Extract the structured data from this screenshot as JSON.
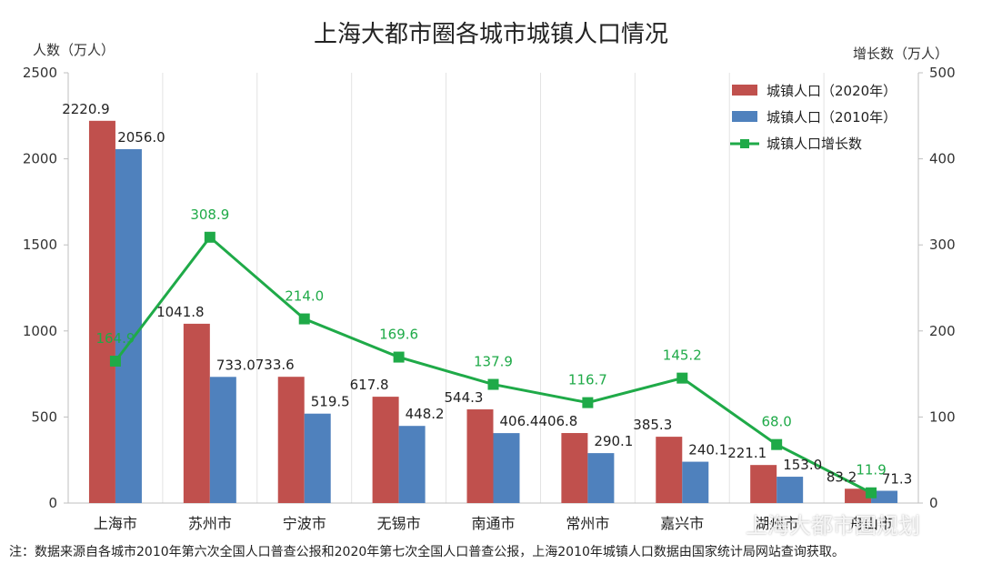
{
  "chart_data": {
    "type": "bar",
    "title": "上海大都市圈各城市城镇人口情况",
    "y_left_label": "人数（万人）",
    "y_right_label": "增长数（万人）",
    "y_left_lim": [
      0,
      2500
    ],
    "y_left_ticks": [
      "0",
      "500",
      "1000",
      "1500",
      "2000",
      "2500"
    ],
    "y_right_lim": [
      0,
      500
    ],
    "y_right_ticks": [
      "0",
      "100",
      "200",
      "300",
      "400",
      "500"
    ],
    "categories": [
      "上海市",
      "苏州市",
      "宁波市",
      "无锡市",
      "南通市",
      "常州市",
      "嘉兴市",
      "湖州市",
      "舟山市"
    ],
    "series": [
      {
        "name": "城镇人口（2020年）",
        "type": "bar",
        "axis": "left",
        "color": "#c0504d",
        "values": [
          2220.9,
          1041.8,
          733.6,
          617.8,
          544.3,
          406.8,
          385.3,
          221.1,
          83.2
        ],
        "labels": [
          "2220.9",
          "1041.8",
          "733.6",
          "617.8",
          "544.3",
          "406.8",
          "385.3",
          "221.1",
          "83.2"
        ]
      },
      {
        "name": "城镇人口（2010年）",
        "type": "bar",
        "axis": "left",
        "color": "#4f81bd",
        "values": [
          2056.0,
          733.0,
          519.5,
          448.2,
          406.4,
          290.1,
          240.1,
          153.0,
          71.3
        ],
        "labels": [
          "2056.0",
          "733.0",
          "519.5",
          "448.2",
          "406.4",
          "290.1",
          "240.1",
          "153.0",
          "71.3"
        ]
      },
      {
        "name": "城镇人口增长数",
        "type": "line",
        "axis": "right",
        "color": "#1faa48",
        "values": [
          164.9,
          308.9,
          214.0,
          169.6,
          137.9,
          116.7,
          145.2,
          68.0,
          11.9
        ],
        "labels": [
          "164.9",
          "308.9",
          "214.0",
          "169.6",
          "137.9",
          "116.7",
          "145.2",
          "68.0",
          "11.9"
        ]
      }
    ],
    "legend_position": "top-right",
    "grid": "vertical"
  },
  "note": "注：数据来源自各城市2010年第六次全国人口普查公报和2020年第七次全国人口普查公报，上海2010年城镇人口数据由国家统计局网站查询获取。",
  "watermark": "上海大都市圈规划"
}
